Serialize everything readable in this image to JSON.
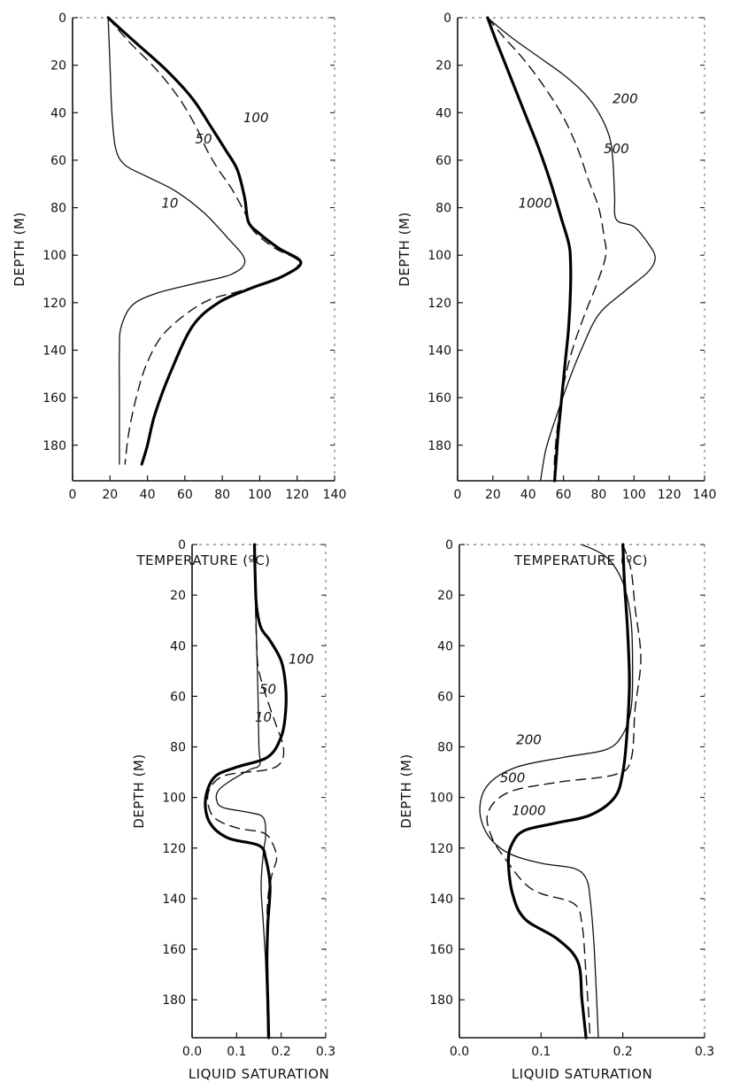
{
  "chart_data": [
    {
      "type": "line",
      "xlabel": "TEMPERATURE (ºC)",
      "ylabel": "DEPTH (M)",
      "xlim": [
        0,
        140
      ],
      "ylim": [
        195,
        0
      ],
      "xticks": [
        0,
        20,
        40,
        60,
        80,
        100,
        120,
        140
      ],
      "yticks": [
        0,
        20,
        40,
        60,
        80,
        100,
        120,
        140,
        160,
        180
      ],
      "series": [
        {
          "name": "10",
          "style": "thin",
          "points": [
            [
              19,
              0
            ],
            [
              20,
              20
            ],
            [
              21,
              40
            ],
            [
              23,
              55
            ],
            [
              28,
              62
            ],
            [
              40,
              67
            ],
            [
              55,
              73
            ],
            [
              70,
              82
            ],
            [
              82,
              92
            ],
            [
              92,
              102
            ],
            [
              85,
              108
            ],
            [
              65,
              112
            ],
            [
              45,
              116
            ],
            [
              32,
              121
            ],
            [
              26,
              130
            ],
            [
              25,
              140
            ],
            [
              25,
              160
            ],
            [
              25,
              188
            ]
          ]
        },
        {
          "name": "50",
          "style": "dashed",
          "points": [
            [
              19,
              0
            ],
            [
              30,
              10
            ],
            [
              45,
              22
            ],
            [
              57,
              34
            ],
            [
              66,
              46
            ],
            [
              72,
              56
            ],
            [
              78,
              64
            ],
            [
              85,
              72
            ],
            [
              92,
              82
            ],
            [
              97,
              90
            ],
            [
              108,
              97
            ],
            [
              121,
              103
            ],
            [
              110,
              110
            ],
            [
              90,
              115
            ],
            [
              70,
              120
            ],
            [
              50,
              132
            ],
            [
              40,
              145
            ],
            [
              34,
              160
            ],
            [
              30,
              175
            ],
            [
              28,
              188
            ]
          ]
        },
        {
          "name": "100",
          "style": "bold",
          "points": [
            [
              19,
              0
            ],
            [
              33,
              10
            ],
            [
              50,
              22
            ],
            [
              64,
              34
            ],
            [
              74,
              46
            ],
            [
              82,
              56
            ],
            [
              88,
              64
            ],
            [
              92,
              76
            ],
            [
              94,
              86
            ],
            [
              100,
              91
            ],
            [
              110,
              97
            ],
            [
              122,
              103
            ],
            [
              112,
              109
            ],
            [
              95,
              114
            ],
            [
              78,
              120
            ],
            [
              64,
              130
            ],
            [
              52,
              150
            ],
            [
              44,
              167
            ],
            [
              40,
              180
            ],
            [
              37,
              188
            ]
          ]
        }
      ]
    },
    {
      "type": "line",
      "xlabel": "TEMPERATURE (ºC)",
      "ylabel": "DEPTH (M)",
      "xlim": [
        0,
        140
      ],
      "ylim": [
        195,
        0
      ],
      "xticks": [
        0,
        20,
        40,
        60,
        80,
        100,
        120,
        140
      ],
      "yticks": [
        0,
        20,
        40,
        60,
        80,
        100,
        120,
        140,
        160,
        180
      ],
      "series": [
        {
          "name": "200",
          "style": "thin",
          "points": [
            [
              17,
              0
            ],
            [
              30,
              8
            ],
            [
              45,
              16
            ],
            [
              60,
              24
            ],
            [
              72,
              32
            ],
            [
              80,
              40
            ],
            [
              86,
              50
            ],
            [
              88,
              60
            ],
            [
              89,
              75
            ],
            [
              90,
              85
            ],
            [
              100,
              88
            ],
            [
              108,
              95
            ],
            [
              112,
              101
            ],
            [
              108,
              107
            ],
            [
              95,
              115
            ],
            [
              80,
              125
            ],
            [
              70,
              140
            ],
            [
              62,
              155
            ],
            [
              55,
              170
            ],
            [
              50,
              182
            ],
            [
              47,
              195
            ]
          ]
        },
        {
          "name": "500",
          "style": "dashed",
          "points": [
            [
              17,
              0
            ],
            [
              26,
              8
            ],
            [
              38,
              18
            ],
            [
              50,
              30
            ],
            [
              60,
              42
            ],
            [
              68,
              55
            ],
            [
              74,
              68
            ],
            [
              80,
              80
            ],
            [
              83,
              92
            ],
            [
              84,
              100
            ],
            [
              79,
              112
            ],
            [
              72,
              125
            ],
            [
              65,
              140
            ],
            [
              60,
              155
            ],
            [
              57,
              170
            ],
            [
              55,
              185
            ],
            [
              55,
              195
            ]
          ]
        },
        {
          "name": "1000",
          "style": "bold",
          "points": [
            [
              17,
              0
            ],
            [
              22,
              10
            ],
            [
              30,
              25
            ],
            [
              38,
              40
            ],
            [
              46,
              55
            ],
            [
              53,
              70
            ],
            [
              59,
              85
            ],
            [
              63,
              95
            ],
            [
              64,
              102
            ],
            [
              64,
              115
            ],
            [
              63,
              130
            ],
            [
              61,
              145
            ],
            [
              59,
              160
            ],
            [
              57,
              175
            ],
            [
              56,
              185
            ],
            [
              55,
              195
            ]
          ]
        }
      ]
    },
    {
      "type": "line",
      "xlabel": "LIQUID SATURATION",
      "ylabel": "DEPTH (M)",
      "xlim": [
        0.0,
        0.3
      ],
      "ylim": [
        195,
        0
      ],
      "xticks": [
        0.0,
        0.1,
        0.2,
        0.3
      ],
      "yticks": [
        0,
        20,
        40,
        60,
        80,
        100,
        120,
        140,
        160,
        180
      ],
      "series": [
        {
          "name": "10",
          "style": "thin",
          "points": [
            [
              0.14,
              0
            ],
            [
              0.142,
              20
            ],
            [
              0.145,
              40
            ],
            [
              0.148,
              60
            ],
            [
              0.15,
              80
            ],
            [
              0.152,
              87
            ],
            [
              0.13,
              89
            ],
            [
              0.09,
              93
            ],
            [
              0.06,
              97
            ],
            [
              0.055,
              101
            ],
            [
              0.07,
              104
            ],
            [
              0.13,
              106
            ],
            [
              0.16,
              108
            ],
            [
              0.165,
              115
            ],
            [
              0.16,
              122
            ],
            [
              0.155,
              135
            ],
            [
              0.16,
              150
            ],
            [
              0.165,
              165
            ],
            [
              0.168,
              180
            ],
            [
              0.17,
              195
            ]
          ]
        },
        {
          "name": "50",
          "style": "dashed",
          "points": [
            [
              0.14,
              0
            ],
            [
              0.142,
              20
            ],
            [
              0.145,
              40
            ],
            [
              0.15,
              50
            ],
            [
              0.17,
              62
            ],
            [
              0.19,
              72
            ],
            [
              0.205,
              80
            ],
            [
              0.2,
              86
            ],
            [
              0.17,
              89
            ],
            [
              0.08,
              91
            ],
            [
              0.045,
              95
            ],
            [
              0.035,
              101
            ],
            [
              0.05,
              108
            ],
            [
              0.1,
              112
            ],
            [
              0.16,
              114
            ],
            [
              0.18,
              118
            ],
            [
              0.19,
              124
            ],
            [
              0.18,
              130
            ],
            [
              0.17,
              140
            ],
            [
              0.168,
              155
            ],
            [
              0.17,
              170
            ],
            [
              0.17,
              195
            ]
          ]
        },
        {
          "name": "100",
          "style": "bold",
          "points": [
            [
              0.14,
              0
            ],
            [
              0.142,
              15
            ],
            [
              0.145,
              25
            ],
            [
              0.155,
              33
            ],
            [
              0.175,
              38
            ],
            [
              0.2,
              46
            ],
            [
              0.21,
              56
            ],
            [
              0.21,
              66
            ],
            [
              0.2,
              76
            ],
            [
              0.17,
              84
            ],
            [
              0.1,
              88
            ],
            [
              0.05,
              92
            ],
            [
              0.03,
              101
            ],
            [
              0.04,
              110
            ],
            [
              0.08,
              116
            ],
            [
              0.15,
              119
            ],
            [
              0.165,
              124
            ],
            [
              0.175,
              135
            ],
            [
              0.17,
              150
            ],
            [
              0.168,
              165
            ],
            [
              0.17,
              180
            ],
            [
              0.172,
              195
            ]
          ]
        }
      ]
    },
    {
      "type": "line",
      "xlabel": "LIQUID SATURATION",
      "ylabel": "DEPTH (M)",
      "xlim": [
        0.0,
        0.3
      ],
      "ylim": [
        195,
        0
      ],
      "xticks": [
        0.0,
        0.1,
        0.2,
        0.3
      ],
      "yticks": [
        0,
        20,
        40,
        60,
        80,
        100,
        120,
        140,
        160,
        180
      ],
      "series": [
        {
          "name": "200",
          "style": "thin",
          "points": [
            [
              0.15,
              0
            ],
            [
              0.18,
              5
            ],
            [
              0.2,
              15
            ],
            [
              0.21,
              30
            ],
            [
              0.212,
              50
            ],
            [
              0.21,
              65
            ],
            [
              0.2,
              75
            ],
            [
              0.18,
              81
            ],
            [
              0.13,
              84
            ],
            [
              0.07,
              88
            ],
            [
              0.035,
              95
            ],
            [
              0.025,
              105
            ],
            [
              0.035,
              115
            ],
            [
              0.06,
              122
            ],
            [
              0.1,
              126
            ],
            [
              0.14,
              128
            ],
            [
              0.155,
              132
            ],
            [
              0.16,
              140
            ],
            [
              0.165,
              160
            ],
            [
              0.17,
              195
            ]
          ]
        },
        {
          "name": "500",
          "style": "dashed",
          "points": [
            [
              0.2,
              0
            ],
            [
              0.21,
              10
            ],
            [
              0.215,
              25
            ],
            [
              0.222,
              45
            ],
            [
              0.215,
              65
            ],
            [
              0.21,
              85
            ],
            [
              0.19,
              91
            ],
            [
              0.12,
              94
            ],
            [
              0.06,
              98
            ],
            [
              0.035,
              106
            ],
            [
              0.04,
              116
            ],
            [
              0.06,
              126
            ],
            [
              0.08,
              134
            ],
            [
              0.1,
              138
            ],
            [
              0.14,
              142
            ],
            [
              0.15,
              150
            ],
            [
              0.155,
              170
            ],
            [
              0.16,
              195
            ]
          ]
        },
        {
          "name": "1000",
          "style": "bold",
          "points": [
            [
              0.2,
              0
            ],
            [
              0.202,
              15
            ],
            [
              0.206,
              35
            ],
            [
              0.208,
              55
            ],
            [
              0.205,
              75
            ],
            [
              0.2,
              90
            ],
            [
              0.19,
              100
            ],
            [
              0.16,
              107
            ],
            [
              0.12,
              110
            ],
            [
              0.08,
              113
            ],
            [
              0.065,
              118
            ],
            [
              0.06,
              125
            ],
            [
              0.065,
              138
            ],
            [
              0.08,
              148
            ],
            [
              0.12,
              156
            ],
            [
              0.145,
              165
            ],
            [
              0.15,
              180
            ],
            [
              0.155,
              195
            ]
          ]
        }
      ]
    }
  ],
  "curve_labels": [
    [
      {
        "text": "100",
        "x": 98,
        "y": 44
      },
      {
        "text": "50",
        "x": 70,
        "y": 53
      },
      {
        "text": "10",
        "x": 52,
        "y": 80
      }
    ],
    [
      {
        "text": "200",
        "x": 95,
        "y": 36
      },
      {
        "text": "500",
        "x": 90,
        "y": 57
      },
      {
        "text": "1000",
        "x": 44,
        "y": 80
      }
    ],
    [
      {
        "text": "100",
        "x": 0.245,
        "y": 47
      },
      {
        "text": "50",
        "x": 0.17,
        "y": 59
      },
      {
        "text": "10",
        "x": 0.16,
        "y": 70
      }
    ],
    [
      {
        "text": "200",
        "x": 0.085,
        "y": 79
      },
      {
        "text": "500",
        "x": 0.065,
        "y": 94
      },
      {
        "text": "1000",
        "x": 0.085,
        "y": 107
      }
    ]
  ]
}
